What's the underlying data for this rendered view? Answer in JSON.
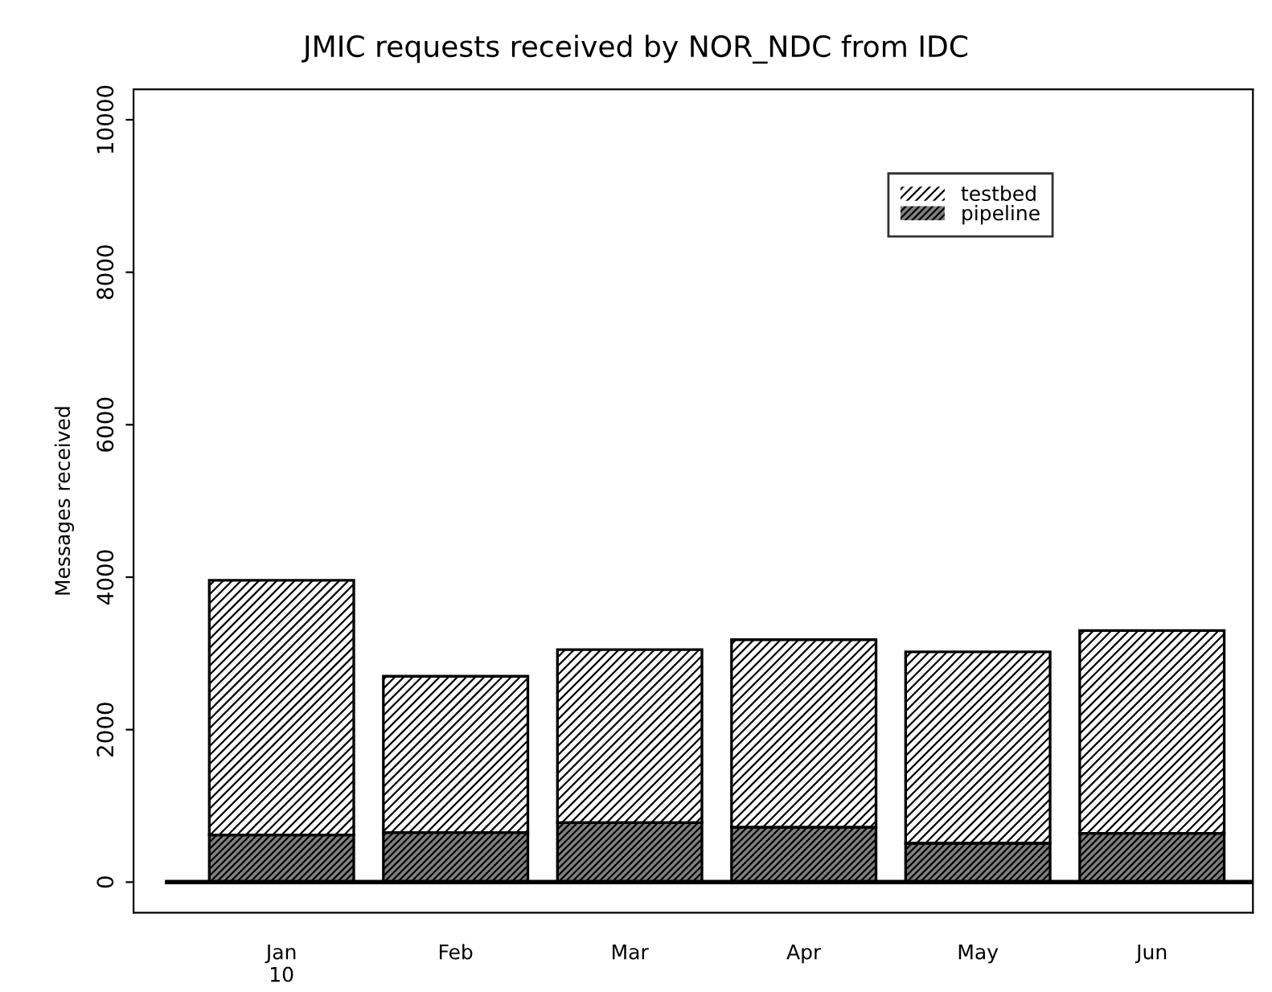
{
  "chart_data": {
    "type": "bar",
    "title": "JMIC requests received by NOR_NDC from IDC",
    "ylabel": "Messages received",
    "categories": [
      "Jan\n10",
      "Feb",
      "Mar",
      "Apr",
      "May",
      "Jun"
    ],
    "stacked": true,
    "series": [
      {
        "name": "pipeline",
        "color": "#808080",
        "values": [
          620,
          650,
          780,
          720,
          510,
          640
        ]
      },
      {
        "name": "testbed",
        "color": "#ffffff",
        "values": [
          3340,
          2050,
          2270,
          2460,
          2510,
          2660
        ]
      }
    ],
    "ylim": [
      -400,
      10400
    ],
    "yticks": [
      0,
      2000,
      4000,
      6000,
      8000,
      10000
    ],
    "ref_lines": [
      {
        "axis": "y",
        "value": 0,
        "color": "#000000"
      }
    ],
    "grid": false,
    "legend": "top right"
  }
}
